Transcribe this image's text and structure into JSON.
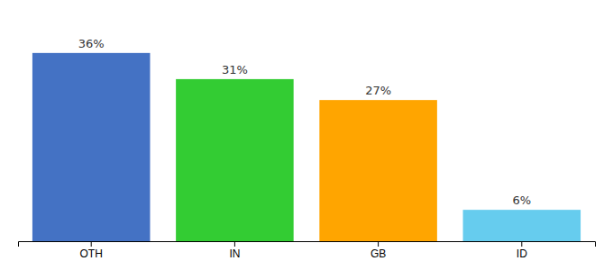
{
  "chart_data": {
    "type": "bar",
    "categories": [
      "OTH",
      "IN",
      "GB",
      "ID"
    ],
    "values": [
      36,
      31,
      27,
      6
    ],
    "value_labels": [
      "36%",
      "31%",
      "27%",
      "6%"
    ],
    "colors": [
      "#4472C4",
      "#33CC33",
      "#FFA500",
      "#66CCEE"
    ],
    "ylim": [
      0,
      42
    ],
    "data_labels": true,
    "tick_labels": "x"
  }
}
